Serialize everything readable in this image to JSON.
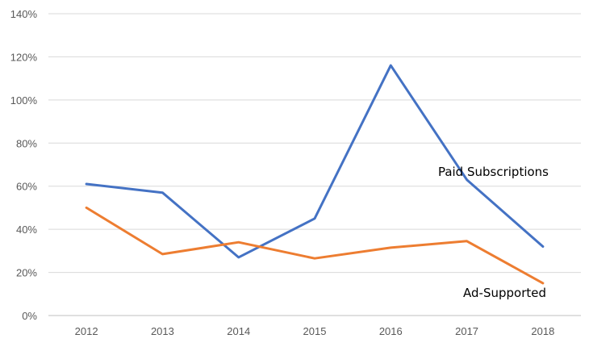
{
  "chart_data": {
    "type": "line",
    "title": "",
    "xlabel": "",
    "ylabel": "",
    "x": [
      "2012",
      "2013",
      "2014",
      "2015",
      "2016",
      "2017",
      "2018"
    ],
    "ylim": [
      0,
      1.4
    ],
    "yticks": [
      0,
      0.2,
      0.4,
      0.6,
      0.8,
      1.0,
      1.2,
      1.4
    ],
    "ytick_labels": [
      "0%",
      "20%",
      "40%",
      "60%",
      "80%",
      "100%",
      "120%",
      "140%"
    ],
    "grid": "horizontal",
    "legend": "none; series labeled directly on plot",
    "series": [
      {
        "name": "Paid Subscriptions",
        "color": "#4472C4",
        "values": [
          0.61,
          0.57,
          0.27,
          0.45,
          1.16,
          0.63,
          0.32
        ]
      },
      {
        "name": "Ad-Supported",
        "color": "#ED7D31",
        "values": [
          0.5,
          0.285,
          0.34,
          0.265,
          0.315,
          0.345,
          0.15
        ]
      }
    ]
  }
}
